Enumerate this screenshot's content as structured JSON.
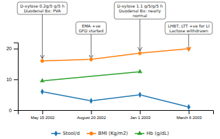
{
  "chart_data": {
    "type": "line",
    "categories": [
      "May 15 2002",
      "August 20 2002",
      "Jan 1 2003",
      "March 6 2003"
    ],
    "series": [
      {
        "name": "Stool/d",
        "values": [
          6,
          3,
          5,
          1
        ],
        "marker": "diamond"
      },
      {
        "name": "BMI (Kg/m2)",
        "values": [
          16,
          16.5,
          18.5,
          20
        ],
        "marker": "circle"
      },
      {
        "name": "Hb (g/dL)",
        "x": [
          "May 15 2002",
          "Jan 1 2003"
        ],
        "values": [
          9.5,
          12.5
        ],
        "marker": "triangle"
      }
    ],
    "ylim": [
      0,
      22
    ],
    "yticks": [
      0,
      10,
      20
    ],
    "annotations": [
      {
        "text": "D-xylose 0.2g/5 g/5 h\nDuodenal Bx: PVA",
        "x": "May 15 2002",
        "y": 16
      },
      {
        "text": "EMA +ve\nGFD started",
        "x": "August 20 2002",
        "y": 16
      },
      {
        "text": "D-xylose 1.1 g/5/g/5 h\nDuodenal Bx: nearly\nnormal",
        "x": "Jan 1 2003",
        "y": 18.5
      },
      {
        "text": "LHBT, LTT +ve for LI\nLactose withdrawn",
        "x": "March 6 2003",
        "y": 18.5
      }
    ],
    "legend": "bottom"
  }
}
